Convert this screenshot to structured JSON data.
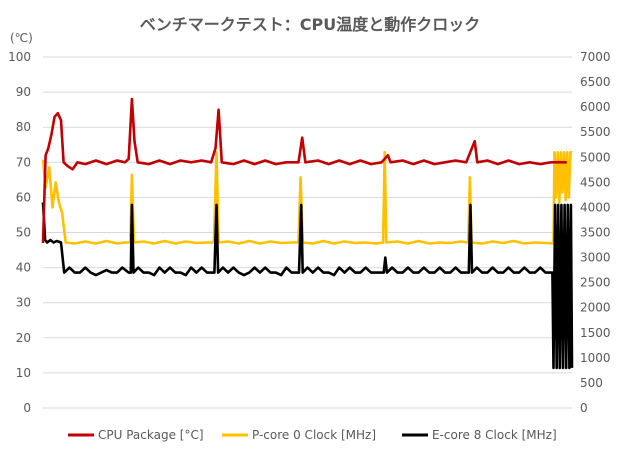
{
  "chart_data": {
    "type": "line",
    "title": "ベンチマークテスト：CPU温度と動作クロック",
    "y_unit_label": "(℃)",
    "grid": true,
    "legend_position": "bottom",
    "y_left": {
      "min": 0,
      "max": 100,
      "ticks": [
        "0",
        "10",
        "20",
        "30",
        "40",
        "50",
        "60",
        "70",
        "80",
        "90",
        "100"
      ]
    },
    "y_right": {
      "min": 0,
      "max": 7000,
      "ticks": [
        "0",
        "500",
        "1000",
        "1500",
        "2000",
        "2500",
        "3000",
        "3500",
        "4000",
        "4500",
        "5000",
        "5500",
        "6000",
        "6500",
        "7000"
      ]
    },
    "x": {
      "min": 0,
      "max": 100
    },
    "series": [
      {
        "name": "CPU Package [°C]",
        "color": "#c00000",
        "axis": "left",
        "points": [
          [
            0,
            47
          ],
          [
            0.5,
            72
          ],
          [
            1,
            74
          ],
          [
            1.6,
            78
          ],
          [
            2.2,
            83
          ],
          [
            2.8,
            84
          ],
          [
            3.4,
            82
          ],
          [
            3.9,
            70
          ],
          [
            4.6,
            69
          ],
          [
            5.6,
            68
          ],
          [
            6.5,
            70
          ],
          [
            8,
            69.5
          ],
          [
            10,
            70.5
          ],
          [
            12,
            69.5
          ],
          [
            14,
            70.5
          ],
          [
            15.5,
            70
          ],
          [
            16.2,
            71
          ],
          [
            16.8,
            88
          ],
          [
            17.3,
            76
          ],
          [
            17.9,
            70
          ],
          [
            20,
            69.5
          ],
          [
            22,
            70.5
          ],
          [
            24,
            69.5
          ],
          [
            26,
            70.5
          ],
          [
            28,
            70
          ],
          [
            30,
            70.5
          ],
          [
            31.8,
            70
          ],
          [
            32.6,
            74
          ],
          [
            33.2,
            85
          ],
          [
            33.8,
            70
          ],
          [
            36,
            69.5
          ],
          [
            38,
            70.5
          ],
          [
            40,
            69.5
          ],
          [
            42,
            70.5
          ],
          [
            44,
            69.5
          ],
          [
            46,
            70
          ],
          [
            48.3,
            70
          ],
          [
            49,
            77
          ],
          [
            49.6,
            70
          ],
          [
            52,
            70.5
          ],
          [
            54,
            69.5
          ],
          [
            56,
            70.5
          ],
          [
            58,
            69.5
          ],
          [
            60,
            70.5
          ],
          [
            62,
            69.5
          ],
          [
            64,
            70
          ],
          [
            65.2,
            72
          ],
          [
            65.7,
            70
          ],
          [
            68,
            70.5
          ],
          [
            70,
            69.5
          ],
          [
            72,
            70.5
          ],
          [
            74,
            69.5
          ],
          [
            76,
            70
          ],
          [
            78,
            70.5
          ],
          [
            80,
            70
          ],
          [
            81.6,
            76
          ],
          [
            82.1,
            70
          ],
          [
            84,
            70.5
          ],
          [
            86,
            69.5
          ],
          [
            88,
            70.5
          ],
          [
            90,
            69.5
          ],
          [
            92,
            70
          ],
          [
            94,
            69.5
          ],
          [
            96,
            70
          ],
          [
            98,
            70
          ],
          [
            99,
            70
          ]
        ]
      },
      {
        "name": "P-core 0 Clock [MHz]",
        "color": "#ffc000",
        "axis": "right",
        "points": [
          [
            0,
            4950
          ],
          [
            0.5,
            4400
          ],
          [
            1.2,
            4800
          ],
          [
            1.8,
            4000
          ],
          [
            2.4,
            4500
          ],
          [
            3,
            4100
          ],
          [
            3.6,
            3900
          ],
          [
            4.3,
            3300
          ],
          [
            6,
            3280
          ],
          [
            8,
            3320
          ],
          [
            10,
            3280
          ],
          [
            12,
            3330
          ],
          [
            14,
            3280
          ],
          [
            15.5,
            3300
          ],
          [
            16.5,
            3300
          ],
          [
            16.8,
            4650
          ],
          [
            17.2,
            3300
          ],
          [
            19,
            3320
          ],
          [
            21,
            3280
          ],
          [
            23,
            3330
          ],
          [
            25,
            3280
          ],
          [
            27,
            3320
          ],
          [
            29,
            3290
          ],
          [
            31,
            3300
          ],
          [
            32.3,
            3300
          ],
          [
            32.8,
            5100
          ],
          [
            33.2,
            3300
          ],
          [
            35,
            3320
          ],
          [
            37,
            3280
          ],
          [
            39,
            3330
          ],
          [
            41,
            3280
          ],
          [
            43,
            3320
          ],
          [
            45,
            3290
          ],
          [
            47,
            3300
          ],
          [
            48.3,
            3300
          ],
          [
            48.7,
            4600
          ],
          [
            49.1,
            3300
          ],
          [
            51,
            3280
          ],
          [
            53,
            3330
          ],
          [
            55,
            3280
          ],
          [
            57,
            3320
          ],
          [
            59,
            3290
          ],
          [
            61,
            3300
          ],
          [
            63,
            3280
          ],
          [
            64.3,
            3300
          ],
          [
            64.6,
            5100
          ],
          [
            64.9,
            3300
          ],
          [
            67,
            3320
          ],
          [
            69,
            3280
          ],
          [
            71,
            3330
          ],
          [
            73,
            3280
          ],
          [
            75,
            3300
          ],
          [
            77,
            3290
          ],
          [
            79,
            3320
          ],
          [
            80.4,
            3300
          ],
          [
            80.7,
            4600
          ],
          [
            81,
            3300
          ],
          [
            83,
            3280
          ],
          [
            85,
            3320
          ],
          [
            87,
            3290
          ],
          [
            89,
            3330
          ],
          [
            91,
            3280
          ],
          [
            93,
            3300
          ],
          [
            95,
            3290
          ],
          [
            96.5,
            3280
          ],
          [
            96.7,
            5100
          ],
          [
            97,
            4200
          ],
          [
            97.3,
            5100
          ],
          [
            97.6,
            4100
          ],
          [
            97.9,
            5100
          ],
          [
            98.2,
            4300
          ],
          [
            98.5,
            5100
          ],
          [
            98.8,
            4150
          ],
          [
            99.1,
            5100
          ],
          [
            99.4,
            4200
          ],
          [
            99.7,
            5100
          ],
          [
            100,
            5100
          ]
        ]
      },
      {
        "name": "E-core 8 Clock [MHz]",
        "color": "#000000",
        "axis": "right",
        "points": [
          [
            0,
            4100
          ],
          [
            0.4,
            3350
          ],
          [
            0.8,
            3300
          ],
          [
            1.4,
            3350
          ],
          [
            2,
            3300
          ],
          [
            2.6,
            3330
          ],
          [
            3.4,
            3300
          ],
          [
            4,
            2700
          ],
          [
            5,
            2800
          ],
          [
            6,
            2700
          ],
          [
            7,
            2700
          ],
          [
            8,
            2800
          ],
          [
            9,
            2700
          ],
          [
            10,
            2650
          ],
          [
            11,
            2700
          ],
          [
            12,
            2750
          ],
          [
            13,
            2700
          ],
          [
            14,
            2700
          ],
          [
            15,
            2800
          ],
          [
            16.2,
            2700
          ],
          [
            16.6,
            2700
          ],
          [
            16.8,
            4050
          ],
          [
            17.1,
            2700
          ],
          [
            18,
            2800
          ],
          [
            19,
            2700
          ],
          [
            20,
            2700
          ],
          [
            21,
            2650
          ],
          [
            22,
            2800
          ],
          [
            23,
            2700
          ],
          [
            24,
            2800
          ],
          [
            25,
            2700
          ],
          [
            26,
            2700
          ],
          [
            27,
            2650
          ],
          [
            28,
            2800
          ],
          [
            29,
            2700
          ],
          [
            30,
            2800
          ],
          [
            31,
            2700
          ],
          [
            32.4,
            2700
          ],
          [
            32.8,
            4050
          ],
          [
            33.1,
            2700
          ],
          [
            34,
            2800
          ],
          [
            35,
            2700
          ],
          [
            36,
            2800
          ],
          [
            37,
            2700
          ],
          [
            38,
            2650
          ],
          [
            39,
            2700
          ],
          [
            40,
            2800
          ],
          [
            41,
            2700
          ],
          [
            42,
            2800
          ],
          [
            43,
            2700
          ],
          [
            44,
            2700
          ],
          [
            45,
            2650
          ],
          [
            46,
            2800
          ],
          [
            47,
            2700
          ],
          [
            48.4,
            2700
          ],
          [
            48.8,
            4050
          ],
          [
            49.1,
            2700
          ],
          [
            50,
            2800
          ],
          [
            51,
            2700
          ],
          [
            52,
            2800
          ],
          [
            53,
            2700
          ],
          [
            54,
            2700
          ],
          [
            55,
            2650
          ],
          [
            56,
            2800
          ],
          [
            57,
            2700
          ],
          [
            58,
            2800
          ],
          [
            59,
            2700
          ],
          [
            60,
            2700
          ],
          [
            61,
            2800
          ],
          [
            62,
            2700
          ],
          [
            63,
            2700
          ],
          [
            64.4,
            2700
          ],
          [
            64.7,
            3000
          ],
          [
            65,
            2700
          ],
          [
            66,
            2800
          ],
          [
            67,
            2700
          ],
          [
            68,
            2700
          ],
          [
            69,
            2800
          ],
          [
            70,
            2700
          ],
          [
            71,
            2700
          ],
          [
            72,
            2800
          ],
          [
            73,
            2700
          ],
          [
            74,
            2700
          ],
          [
            75,
            2800
          ],
          [
            76,
            2700
          ],
          [
            77,
            2700
          ],
          [
            78,
            2800
          ],
          [
            79,
            2700
          ],
          [
            80.5,
            2700
          ],
          [
            80.8,
            4050
          ],
          [
            81.1,
            2700
          ],
          [
            82,
            2800
          ],
          [
            83,
            2700
          ],
          [
            84,
            2700
          ],
          [
            85,
            2800
          ],
          [
            86,
            2700
          ],
          [
            87,
            2700
          ],
          [
            88,
            2800
          ],
          [
            89,
            2700
          ],
          [
            90,
            2700
          ],
          [
            91,
            2800
          ],
          [
            92,
            2700
          ],
          [
            93,
            2700
          ],
          [
            94,
            2800
          ],
          [
            95,
            2700
          ],
          [
            96.3,
            2700
          ],
          [
            96.5,
            800
          ],
          [
            96.8,
            4050
          ],
          [
            97.1,
            800
          ],
          [
            97.4,
            4050
          ],
          [
            97.7,
            800
          ],
          [
            98,
            4050
          ],
          [
            98.3,
            800
          ],
          [
            98.6,
            4050
          ],
          [
            98.9,
            800
          ],
          [
            99.2,
            4050
          ],
          [
            99.5,
            800
          ],
          [
            99.8,
            4050
          ],
          [
            100,
            800
          ]
        ]
      }
    ]
  }
}
